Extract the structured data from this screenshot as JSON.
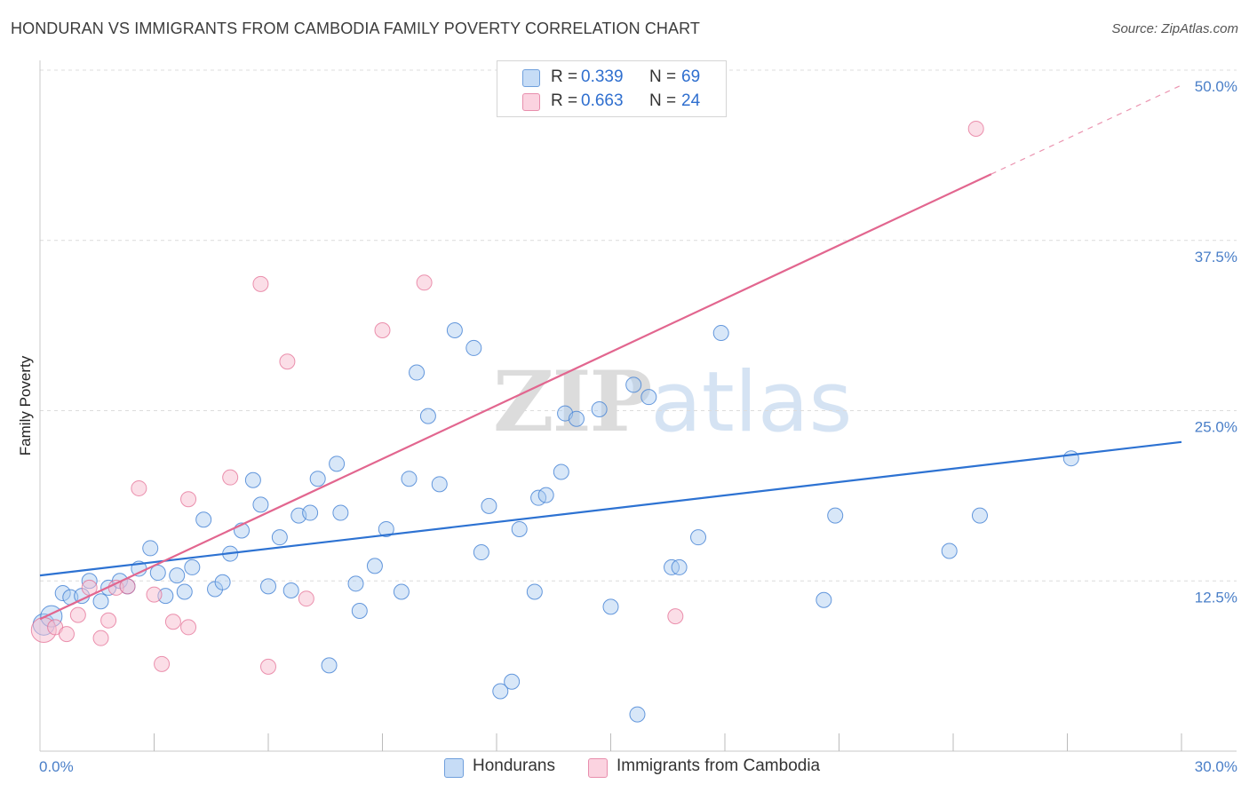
{
  "title": "HONDURAN VS IMMIGRANTS FROM CAMBODIA FAMILY POVERTY CORRELATION CHART",
  "source": "Source: ZipAtlas.com",
  "watermark": {
    "part1": "ZIP",
    "part2": "atlas"
  },
  "legend": {
    "rows": [
      {
        "r_label": "R =",
        "r_value": "0.339",
        "n_label": "N =",
        "n_value": "69",
        "color": "#a9c9f0"
      },
      {
        "r_label": "R =",
        "r_value": "0.663",
        "n_label": "N =",
        "n_value": "24",
        "color": "#f8bdd0"
      }
    ]
  },
  "bottom_legend": [
    {
      "label": "Hondurans",
      "color": "#a9c9f0"
    },
    {
      "label": "Immigrants from Cambodia",
      "color": "#f8bdd0"
    }
  ],
  "chart_data": {
    "type": "scatter",
    "ylabel": "Family Poverty",
    "xlabel": "",
    "xlim": [
      0,
      30
    ],
    "ylim": [
      0,
      50
    ],
    "x_tick_labels": [
      {
        "value": 0,
        "label": "0.0%"
      },
      {
        "value": 30,
        "label": "30.0%"
      }
    ],
    "y_tick_labels": [
      {
        "value": 12.5,
        "label": "12.5%"
      },
      {
        "value": 25,
        "label": "25.0%"
      },
      {
        "value": 37.5,
        "label": "37.5%"
      },
      {
        "value": 50,
        "label": "50.0%"
      }
    ],
    "grid": "horizontal dashed",
    "colors": {
      "hondurans": "#4a86d6",
      "hondurans_fill": "#a9c9f0",
      "cambodia": "#e2668f",
      "cambodia_fill": "#f8bdd0"
    },
    "series": [
      {
        "name": "Hondurans",
        "points": [
          [
            0.1,
            9.3
          ],
          [
            0.3,
            9.9
          ],
          [
            0.6,
            11.6
          ],
          [
            0.8,
            11.3
          ],
          [
            1.1,
            11.4
          ],
          [
            1.3,
            12.5
          ],
          [
            1.6,
            11.0
          ],
          [
            1.8,
            12.0
          ],
          [
            2.1,
            12.5
          ],
          [
            2.3,
            12.1
          ],
          [
            2.6,
            13.4
          ],
          [
            2.9,
            14.9
          ],
          [
            3.1,
            13.1
          ],
          [
            3.3,
            11.4
          ],
          [
            3.6,
            12.9
          ],
          [
            3.8,
            11.7
          ],
          [
            4.0,
            13.5
          ],
          [
            4.3,
            17.0
          ],
          [
            4.6,
            11.9
          ],
          [
            4.8,
            12.4
          ],
          [
            5.0,
            14.5
          ],
          [
            5.3,
            16.2
          ],
          [
            5.6,
            19.9
          ],
          [
            5.8,
            18.1
          ],
          [
            6.0,
            12.1
          ],
          [
            6.3,
            15.7
          ],
          [
            6.6,
            11.8
          ],
          [
            6.8,
            17.3
          ],
          [
            7.1,
            17.5
          ],
          [
            7.3,
            20.0
          ],
          [
            7.6,
            6.3
          ],
          [
            7.8,
            21.1
          ],
          [
            7.9,
            17.5
          ],
          [
            8.3,
            12.3
          ],
          [
            8.4,
            10.3
          ],
          [
            8.8,
            13.6
          ],
          [
            9.1,
            16.3
          ],
          [
            9.5,
            11.7
          ],
          [
            9.7,
            20.0
          ],
          [
            9.9,
            27.8
          ],
          [
            10.2,
            24.6
          ],
          [
            10.5,
            19.6
          ],
          [
            10.9,
            30.9
          ],
          [
            11.4,
            29.6
          ],
          [
            11.6,
            14.6
          ],
          [
            11.8,
            18.0
          ],
          [
            12.1,
            4.4
          ],
          [
            12.4,
            5.1
          ],
          [
            12.6,
            16.3
          ],
          [
            13.0,
            11.7
          ],
          [
            13.1,
            18.6
          ],
          [
            13.3,
            18.8
          ],
          [
            13.7,
            20.5
          ],
          [
            13.8,
            24.8
          ],
          [
            14.1,
            24.4
          ],
          [
            14.7,
            25.1
          ],
          [
            15.0,
            10.6
          ],
          [
            15.6,
            26.9
          ],
          [
            15.7,
            2.7
          ],
          [
            16.0,
            26.0
          ],
          [
            16.6,
            13.5
          ],
          [
            16.8,
            13.5
          ],
          [
            17.3,
            15.7
          ],
          [
            17.9,
            30.7
          ],
          [
            20.6,
            11.1
          ],
          [
            20.9,
            17.3
          ],
          [
            23.9,
            14.7
          ],
          [
            24.7,
            17.3
          ],
          [
            27.1,
            21.5
          ]
        ],
        "trend": {
          "x": [
            0,
            30
          ],
          "y": [
            12.9,
            22.7
          ]
        }
      },
      {
        "name": "Immigrants from Cambodia",
        "points": [
          [
            0.1,
            8.9
          ],
          [
            0.4,
            9.1
          ],
          [
            0.7,
            8.6
          ],
          [
            1.0,
            10.0
          ],
          [
            1.3,
            12.0
          ],
          [
            1.6,
            8.3
          ],
          [
            1.8,
            9.6
          ],
          [
            2.0,
            12.0
          ],
          [
            2.3,
            12.1
          ],
          [
            2.6,
            19.3
          ],
          [
            3.0,
            11.5
          ],
          [
            3.2,
            6.4
          ],
          [
            3.5,
            9.5
          ],
          [
            3.9,
            9.1
          ],
          [
            3.9,
            18.5
          ],
          [
            5.0,
            20.1
          ],
          [
            5.8,
            34.3
          ],
          [
            6.0,
            6.2
          ],
          [
            6.5,
            28.6
          ],
          [
            7.0,
            11.2
          ],
          [
            9.0,
            30.9
          ],
          [
            10.1,
            34.4
          ],
          [
            16.7,
            9.9
          ],
          [
            24.6,
            45.7
          ]
        ],
        "trend": {
          "x": [
            0,
            30
          ],
          "y": [
            9.7,
            48.9
          ],
          "solid_until_x": 25
        }
      }
    ]
  }
}
